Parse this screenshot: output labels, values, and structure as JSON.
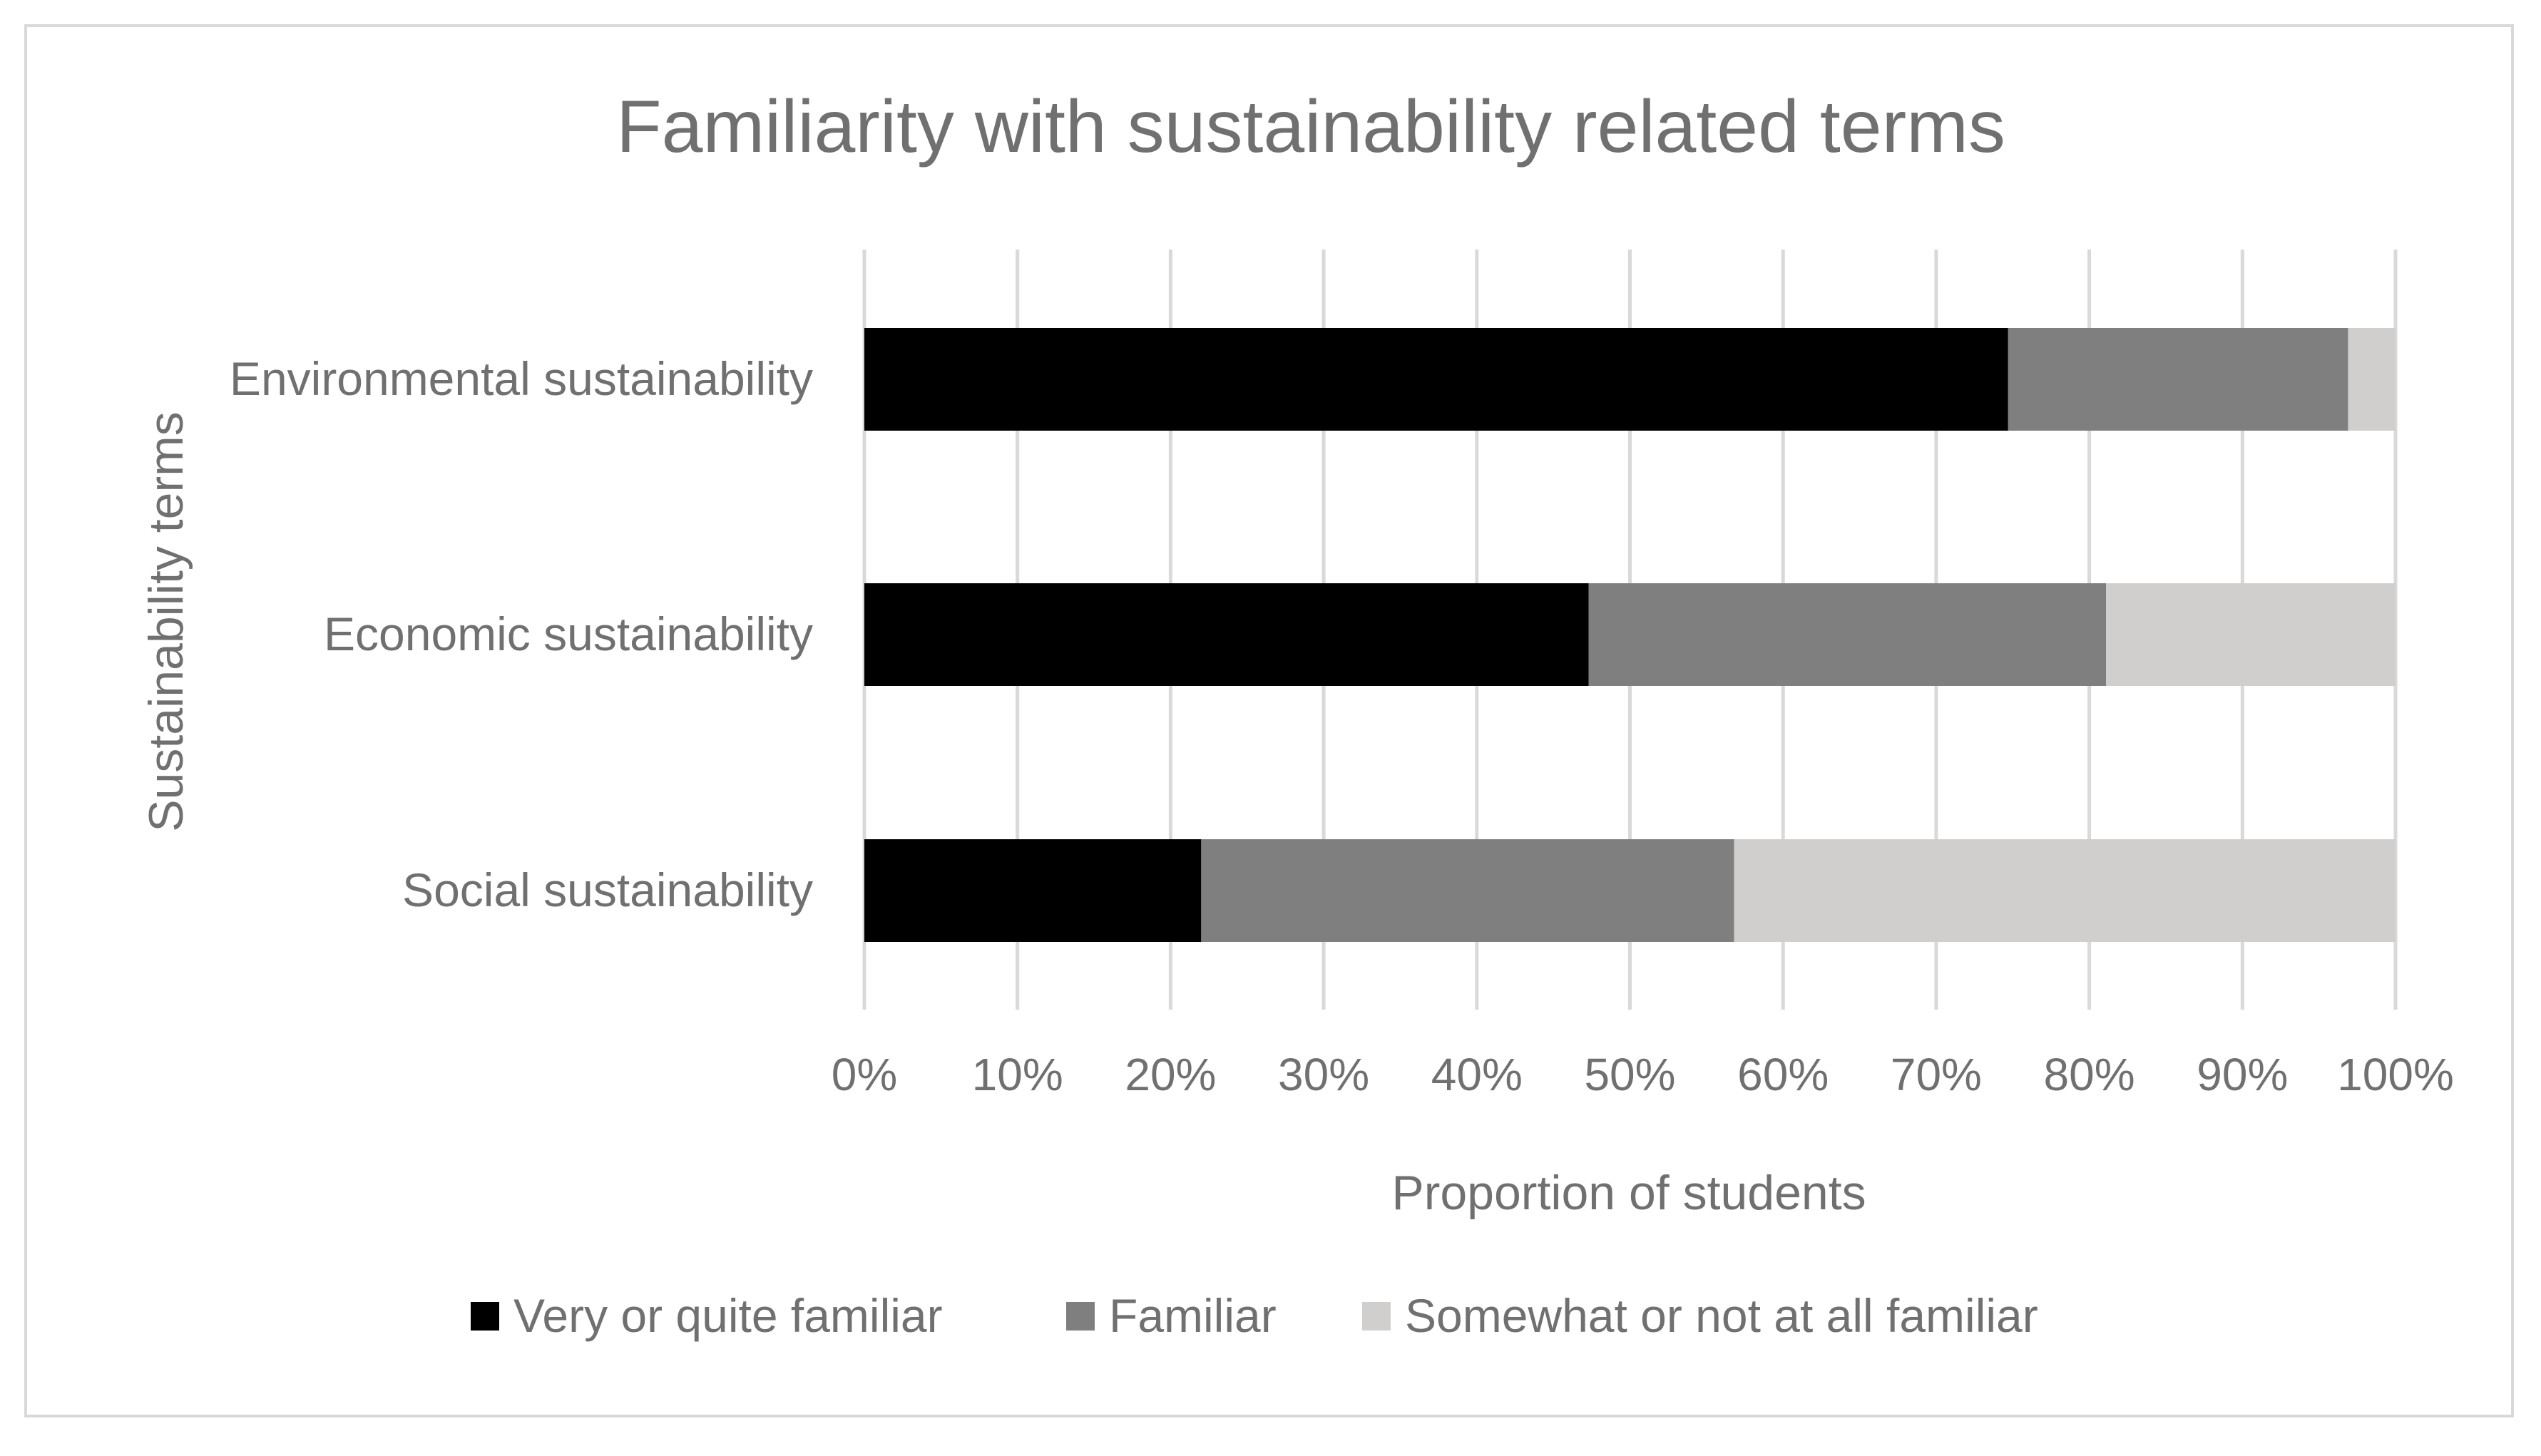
{
  "chart_data": {
    "type": "bar",
    "orientation": "horizontal",
    "stacked": "percent",
    "title": "Familiarity with sustainability related terms",
    "xlabel": "Proportion of students",
    "ylabel": "Sustainability terms",
    "xlim": [
      0,
      100
    ],
    "x_ticks": [
      "0%",
      "10%",
      "20%",
      "30%",
      "40%",
      "50%",
      "60%",
      "70%",
      "80%",
      "90%",
      "100%"
    ],
    "categories": [
      "Environmental sustainability",
      "Economic sustainability",
      "Social sustainability"
    ],
    "series": [
      {
        "name": "Very or quite familiar",
        "color": "#000000",
        "values": [
          74.7,
          47.3,
          22.0
        ]
      },
      {
        "name": "Familiar",
        "color": "#7f7f7f",
        "values": [
          22.2,
          33.8,
          34.8
        ]
      },
      {
        "name": "Somewhat or not at all familiar",
        "color": "#d0cfce",
        "values": [
          3.1,
          18.9,
          43.2
        ]
      }
    ],
    "grid": true,
    "legend_position": "bottom"
  }
}
